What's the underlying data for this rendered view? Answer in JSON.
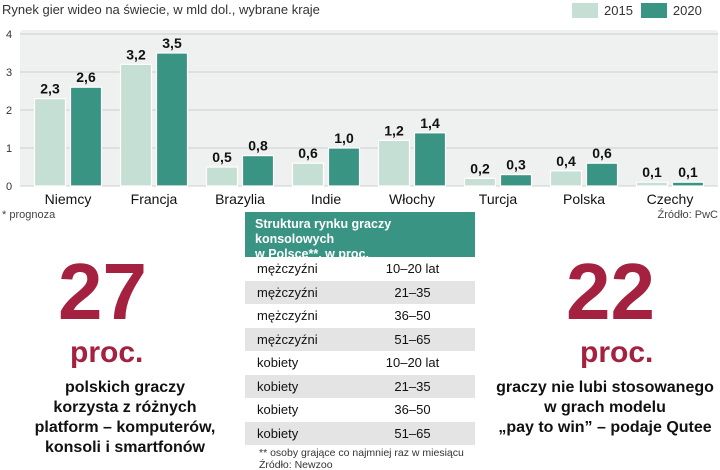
{
  "chart_data": {
    "type": "bar",
    "title": "Rynek gier wideo na świecie, w mld dol., wybrane kraje",
    "categories": [
      "Niemcy",
      "Francja",
      "Brazylia",
      "Indie",
      "Włochy",
      "Turcja",
      "Polska",
      "Czechy"
    ],
    "series": [
      {
        "name": "2015",
        "values": [
          2.3,
          3.2,
          0.5,
          0.6,
          1.2,
          0.2,
          0.4,
          0.1
        ],
        "labels": [
          "2,3",
          "3,2",
          "0,5",
          "0,6",
          "1,2",
          "0,2",
          "0,4",
          "0,1"
        ]
      },
      {
        "name": "2020",
        "values": [
          2.6,
          3.5,
          0.8,
          1.0,
          1.4,
          0.3,
          0.6,
          0.1
        ],
        "labels": [
          "2,6",
          "3,5",
          "0,8",
          "1,0",
          "1,4",
          "0,3",
          "0,6",
          "0,1"
        ]
      }
    ],
    "yticks": [
      "0",
      "1",
      "2",
      "3",
      "4"
    ],
    "ylim": [
      0,
      4
    ],
    "grid": true,
    "legend": "top-right",
    "colors": {
      "2015": "#c6dfd4",
      "2020": "#3a9484",
      "grid": "#cfcfcf",
      "plot_bg": "#eef1ef"
    }
  },
  "footnote": "* prognoza",
  "source": "Źródło: PwC",
  "left_stat": {
    "number": "27",
    "unit": "proc.",
    "text": [
      "polskich graczy",
      "korzysta z różnych",
      "platform – komputerów,",
      "konsoli i smartfonów"
    ]
  },
  "right_stat": {
    "number": "22",
    "unit": "proc.",
    "text": [
      "graczy nie lubi stosowanego",
      "w grach modelu",
      "„pay to win” – podaje Qutee"
    ]
  },
  "table": {
    "header": [
      "Struktura rynku graczy konsolowych",
      "w Polsce**, w proc."
    ],
    "rows": [
      {
        "gender": "mężczyźni",
        "age": "10–20 lat"
      },
      {
        "gender": "mężczyźni",
        "age": "21–35"
      },
      {
        "gender": "mężczyźni",
        "age": "36–50"
      },
      {
        "gender": "mężczyźni",
        "age": "51–65"
      },
      {
        "gender": "kobiety",
        "age": "10–20 lat"
      },
      {
        "gender": "kobiety",
        "age": "21–35"
      },
      {
        "gender": "kobiety",
        "age": "36–50"
      },
      {
        "gender": "kobiety",
        "age": "51–65"
      }
    ],
    "note": [
      "** osoby grające co najmniej raz w miesiącu",
      "Źródło: Newzoo"
    ]
  }
}
